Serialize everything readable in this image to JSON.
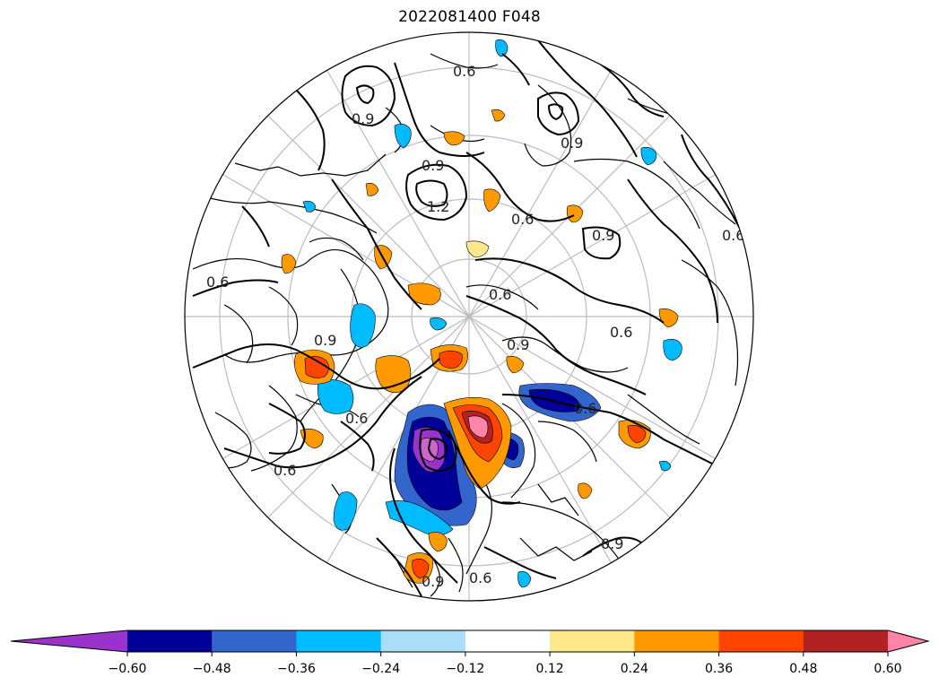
{
  "title": "2022081400 F048",
  "map": {
    "projection": "north-polar-stereographic",
    "contour_levels_shown": [
      "0.6",
      "0.9",
      "1.2"
    ],
    "contour_labels": [
      "0.6",
      "0.6",
      "0.6",
      "0.6",
      "0.6",
      "0.6",
      "0.6",
      "0.6",
      "0.6",
      "0.6",
      "0.9",
      "0.9",
      "0.9",
      "0.9",
      "0.9",
      "0.9",
      "0.9",
      "0.9",
      "1.2"
    ]
  },
  "colorbar": {
    "ticks": [
      "−0.60",
      "−0.48",
      "−0.36",
      "−0.24",
      "−0.12",
      "0.12",
      "0.24",
      "0.36",
      "0.48",
      "0.60"
    ],
    "colors": [
      "#9933cc",
      "#000099",
      "#3366cc",
      "#00bbff",
      "#aaddf8",
      "#ffffff",
      "#ffe88a",
      "#ff9900",
      "#ff4400",
      "#b22222",
      "#ff85a8"
    ],
    "extend": "both"
  }
}
